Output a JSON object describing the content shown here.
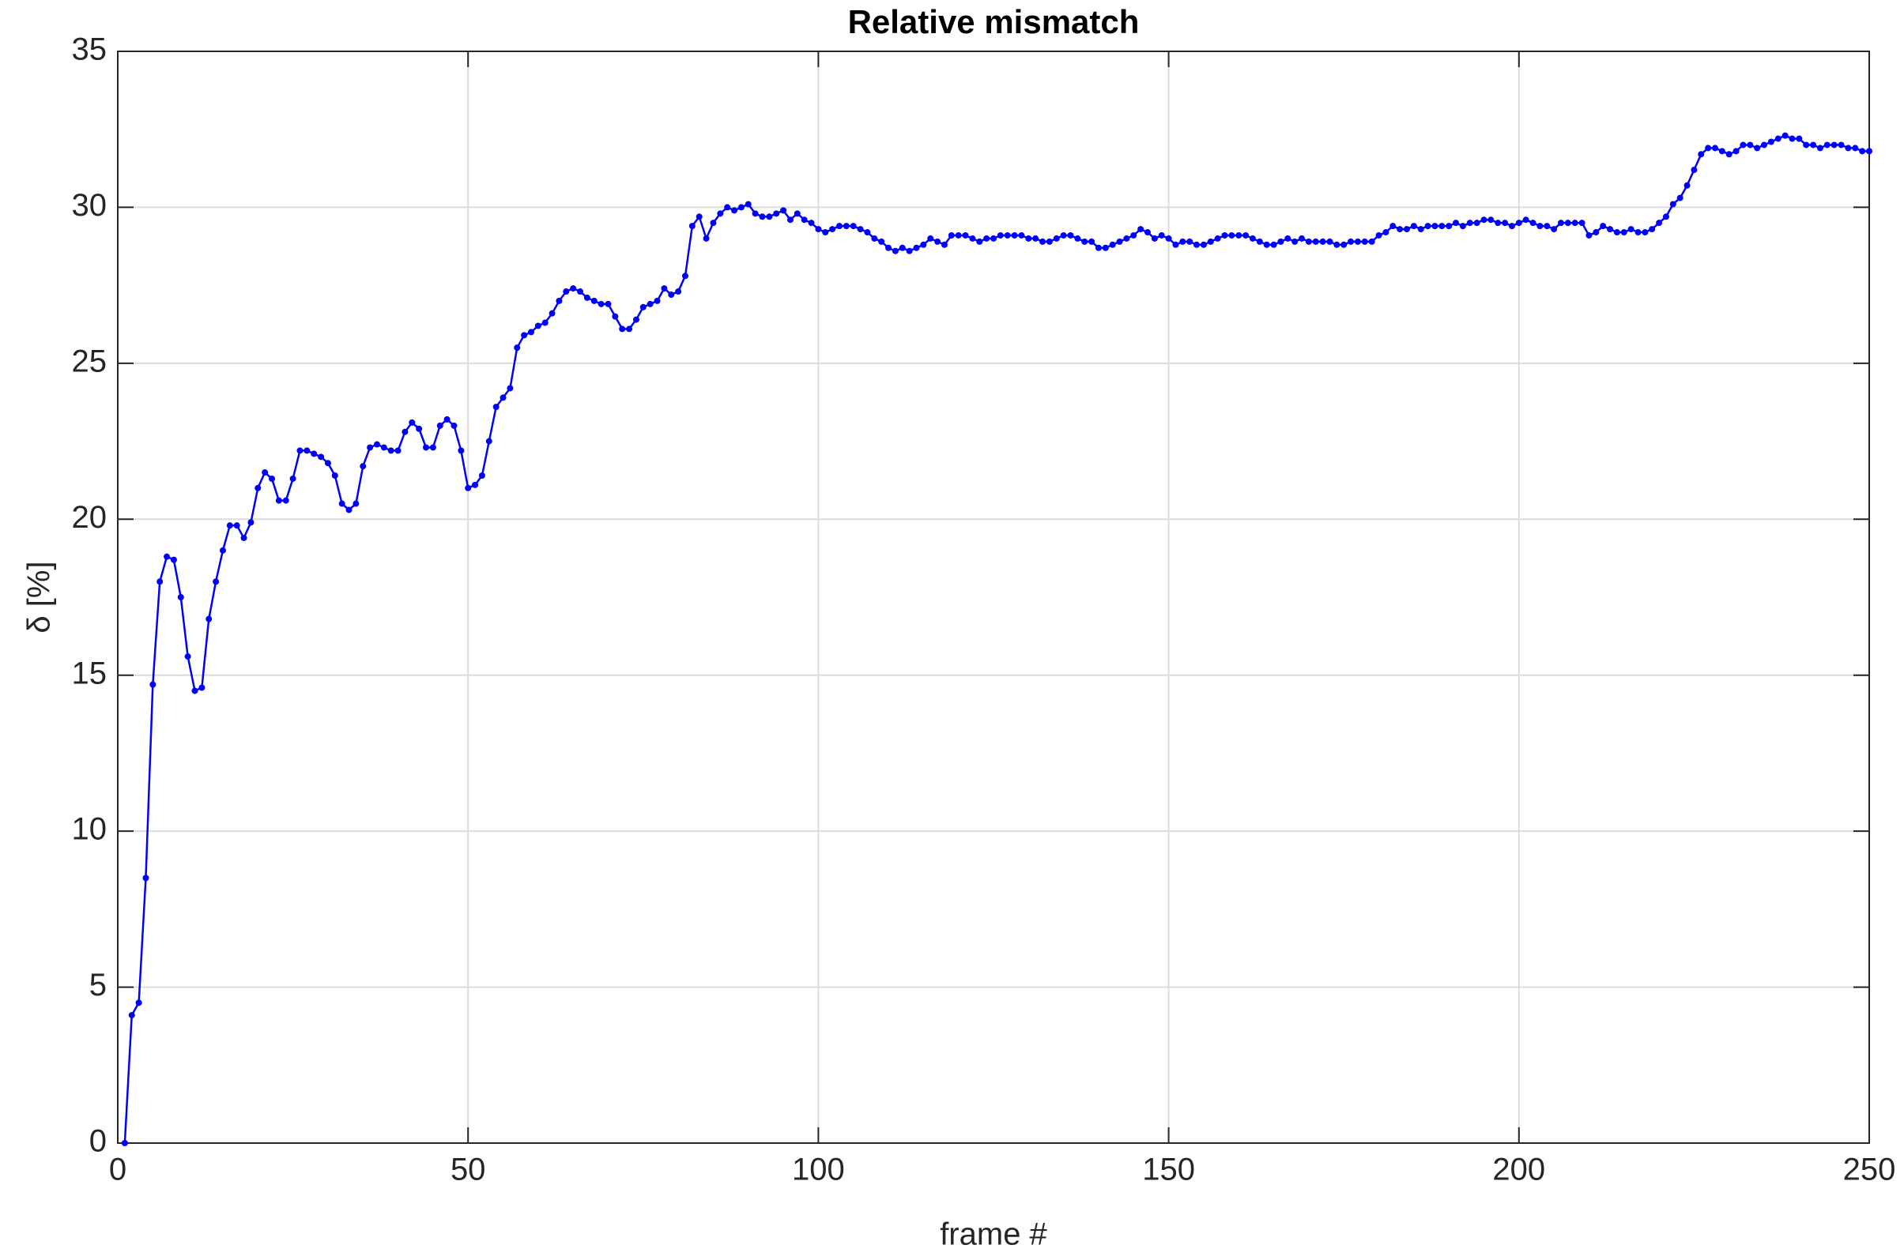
{
  "chart_data": {
    "type": "line",
    "title": "Relative mismatch",
    "x_label": "frame #",
    "y_label": "δ [%]",
    "color": "#0000ff",
    "grid": true,
    "markers": true,
    "xlim": [
      0,
      250
    ],
    "ylim": [
      0,
      35
    ],
    "xticks": [
      0,
      50,
      100,
      150,
      200,
      250
    ],
    "yticks": [
      0,
      5,
      10,
      15,
      20,
      25,
      30,
      35
    ],
    "x": [
      1,
      2,
      3,
      4,
      5,
      6,
      7,
      8,
      9,
      10,
      11,
      12,
      13,
      14,
      15,
      16,
      17,
      18,
      19,
      20,
      21,
      22,
      23,
      24,
      25,
      26,
      27,
      28,
      29,
      30,
      31,
      32,
      33,
      34,
      35,
      36,
      37,
      38,
      39,
      40,
      41,
      42,
      43,
      44,
      45,
      46,
      47,
      48,
      49,
      50,
      51,
      52,
      53,
      54,
      55,
      56,
      57,
      58,
      59,
      60,
      61,
      62,
      63,
      64,
      65,
      66,
      67,
      68,
      69,
      70,
      71,
      72,
      73,
      74,
      75,
      76,
      77,
      78,
      79,
      80,
      81,
      82,
      83,
      84,
      85,
      86,
      87,
      88,
      89,
      90,
      91,
      92,
      93,
      94,
      95,
      96,
      97,
      98,
      99,
      100,
      101,
      102,
      103,
      104,
      105,
      106,
      107,
      108,
      109,
      110,
      111,
      112,
      113,
      114,
      115,
      116,
      117,
      118,
      119,
      120,
      121,
      122,
      123,
      124,
      125,
      126,
      127,
      128,
      129,
      130,
      131,
      132,
      133,
      134,
      135,
      136,
      137,
      138,
      139,
      140,
      141,
      142,
      143,
      144,
      145,
      146,
      147,
      148,
      149,
      150,
      151,
      152,
      153,
      154,
      155,
      156,
      157,
      158,
      159,
      160,
      161,
      162,
      163,
      164,
      165,
      166,
      167,
      168,
      169,
      170,
      171,
      172,
      173,
      174,
      175,
      176,
      177,
      178,
      179,
      180,
      181,
      182,
      183,
      184,
      185,
      186,
      187,
      188,
      189,
      190,
      191,
      192,
      193,
      194,
      195,
      196,
      197,
      198,
      199,
      200,
      201,
      202,
      203,
      204,
      205,
      206,
      207,
      208,
      209,
      210,
      211,
      212,
      213,
      214,
      215,
      216,
      217,
      218,
      219,
      220,
      221,
      222,
      223,
      224,
      225,
      226,
      227,
      228,
      229,
      230,
      231,
      232,
      233,
      234,
      235,
      236,
      237,
      238,
      239,
      240,
      241,
      242,
      243,
      244,
      245,
      246,
      247,
      248,
      249,
      250
    ],
    "values": [
      0,
      4.1,
      4.5,
      8.5,
      14.7,
      18.0,
      18.8,
      18.7,
      17.5,
      15.6,
      14.5,
      14.6,
      16.8,
      18.0,
      19.0,
      19.8,
      19.8,
      19.4,
      19.9,
      21.0,
      21.5,
      21.3,
      20.6,
      20.6,
      21.3,
      22.2,
      22.2,
      22.1,
      22.0,
      21.8,
      21.4,
      20.5,
      20.3,
      20.5,
      21.7,
      22.3,
      22.4,
      22.3,
      22.2,
      22.2,
      22.8,
      23.1,
      22.9,
      22.3,
      22.3,
      23.0,
      23.2,
      23.0,
      22.2,
      21.0,
      21.1,
      21.4,
      22.5,
      23.6,
      23.9,
      24.2,
      25.5,
      25.9,
      26.0,
      26.2,
      26.3,
      26.6,
      27.0,
      27.3,
      27.4,
      27.3,
      27.1,
      27.0,
      26.9,
      26.9,
      26.5,
      26.1,
      26.1,
      26.4,
      26.8,
      26.9,
      27.0,
      27.4,
      27.2,
      27.3,
      27.8,
      29.4,
      29.7,
      29.0,
      29.5,
      29.8,
      30.0,
      29.9,
      30.0,
      30.1,
      29.8,
      29.7,
      29.7,
      29.8,
      29.9,
      29.6,
      29.8,
      29.6,
      29.5,
      29.3,
      29.2,
      29.3,
      29.4,
      29.4,
      29.4,
      29.3,
      29.2,
      29.0,
      28.9,
      28.7,
      28.6,
      28.7,
      28.6,
      28.7,
      28.8,
      29.0,
      28.9,
      28.8,
      29.1,
      29.1,
      29.1,
      29.0,
      28.9,
      29.0,
      29.0,
      29.1,
      29.1,
      29.1,
      29.1,
      29.0,
      29.0,
      28.9,
      28.9,
      29.0,
      29.1,
      29.1,
      29.0,
      28.9,
      28.9,
      28.7,
      28.7,
      28.8,
      28.9,
      29.0,
      29.1,
      29.3,
      29.2,
      29.0,
      29.1,
      29.0,
      28.8,
      28.9,
      28.9,
      28.8,
      28.8,
      28.9,
      29.0,
      29.1,
      29.1,
      29.1,
      29.1,
      29.0,
      28.9,
      28.8,
      28.8,
      28.9,
      29.0,
      28.9,
      29.0,
      28.9,
      28.9,
      28.9,
      28.9,
      28.8,
      28.8,
      28.9,
      28.9,
      28.9,
      28.9,
      29.1,
      29.2,
      29.4,
      29.3,
      29.3,
      29.4,
      29.3,
      29.4,
      29.4,
      29.4,
      29.4,
      29.5,
      29.4,
      29.5,
      29.5,
      29.6,
      29.6,
      29.5,
      29.5,
      29.4,
      29.5,
      29.6,
      29.5,
      29.4,
      29.4,
      29.3,
      29.5,
      29.5,
      29.5,
      29.5,
      29.1,
      29.2,
      29.4,
      29.3,
      29.2,
      29.2,
      29.3,
      29.2,
      29.2,
      29.3,
      29.5,
      29.7,
      30.1,
      30.3,
      30.7,
      31.2,
      31.7,
      31.9,
      31.9,
      31.8,
      31.7,
      31.8,
      32.0,
      32.0,
      31.9,
      32.0,
      32.1,
      32.2,
      32.3,
      32.2,
      32.2,
      32.0,
      32.0,
      31.9,
      32.0,
      32.0,
      32.0,
      31.9,
      31.9,
      31.8,
      31.8
    ]
  }
}
